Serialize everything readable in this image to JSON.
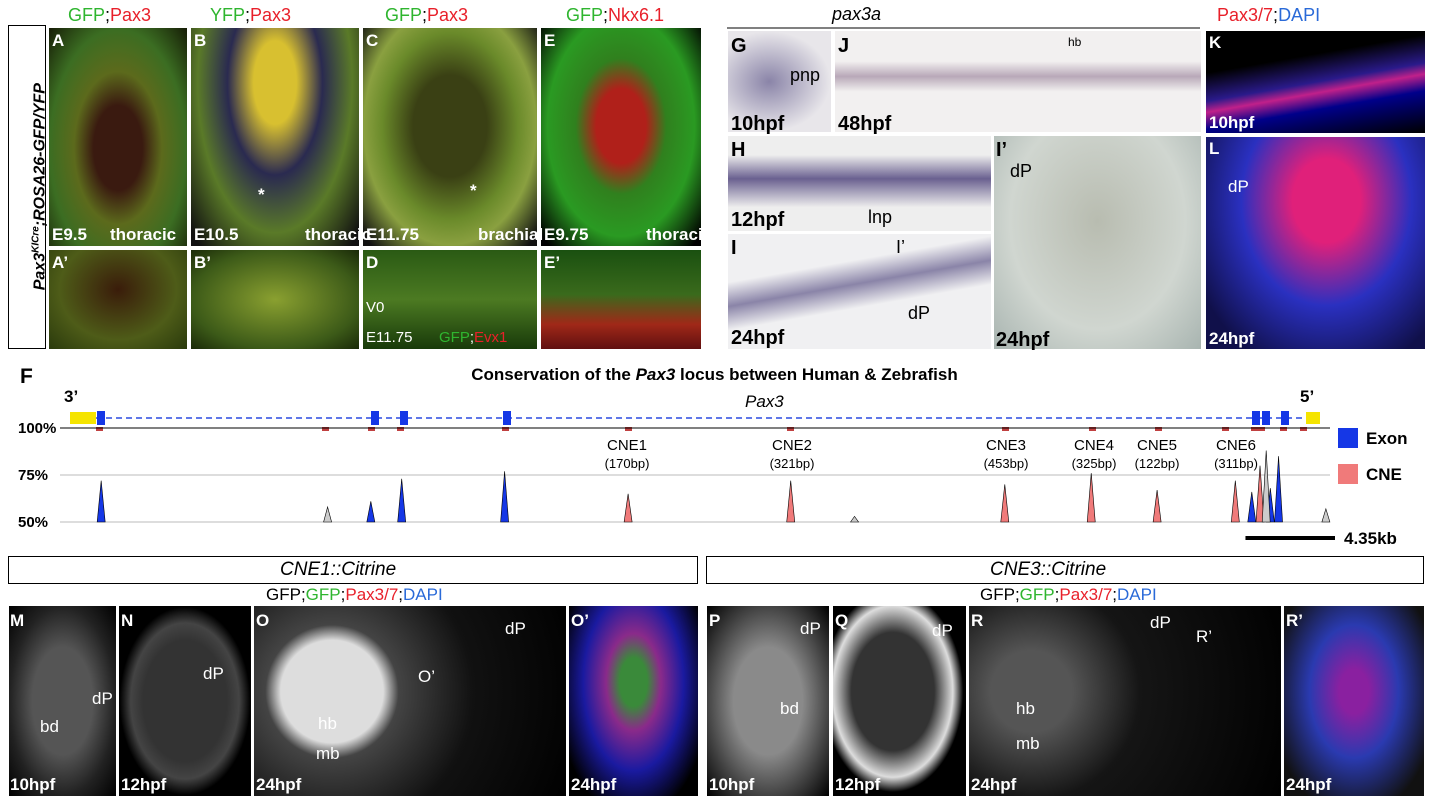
{
  "side_label": {
    "gene": "Pax3",
    "superscript": "KICre",
    "rest": ";ROSA26-GFP/YFP"
  },
  "headers": [
    [
      "GFP",
      ";",
      "Pax3"
    ],
    [
      "YFP",
      ";",
      "Pax3"
    ],
    [
      "GFP",
      ";",
      "Pax3"
    ],
    [
      "GFP",
      ";",
      "Nkx6.1"
    ]
  ],
  "pax3a_header": "pax3a",
  "k_header": [
    "Pax3/7",
    ";",
    "DAPI"
  ],
  "panels": {
    "A": {
      "letter": "A",
      "stage": "E9.5",
      "region": "thoracic"
    },
    "A_prime": {
      "letter": "A’"
    },
    "B": {
      "letter": "B",
      "stage": "E10.5",
      "region": "thoracic",
      "mark": "*"
    },
    "B_prime": {
      "letter": "B’"
    },
    "C": {
      "letter": "C",
      "stage": "E11.75",
      "region": "brachial",
      "mark": "*"
    },
    "D": {
      "letter": "D",
      "domain": "V0",
      "stage": "E11.75",
      "stain": [
        "GFP",
        ";",
        "Evx1"
      ]
    },
    "E": {
      "letter": "E",
      "stage": "E9.75",
      "region": "thoracic"
    },
    "E_prime": {
      "letter": "E’"
    },
    "G": {
      "letter": "G",
      "stage": "10hpf",
      "note": "pnp"
    },
    "J": {
      "letter": "J",
      "stage": "48hpf",
      "note": "hb"
    },
    "K": {
      "letter": "K",
      "stage": "10hpf"
    },
    "H": {
      "letter": "H",
      "stage": "12hpf",
      "note": "lnp"
    },
    "I": {
      "letter": "I",
      "stage": "24hpf",
      "section": "I’",
      "note": "dP"
    },
    "I_prime": {
      "letter": "I’",
      "note": "dP",
      "stage": "24hpf"
    },
    "L": {
      "letter": "L",
      "note": "dP",
      "stage": "24hpf"
    },
    "M": {
      "letter": "M",
      "stage": "10hpf",
      "bd": "bd",
      "dp": "dP"
    },
    "N": {
      "letter": "N",
      "stage": "12hpf",
      "dp": "dP"
    },
    "O": {
      "letter": "O",
      "stage": "24hpf",
      "section": "O’",
      "dp": "dP",
      "hb": "hb",
      "mb": "mb"
    },
    "O_prime": {
      "letter": "O’",
      "stage": "24hpf"
    },
    "P": {
      "letter": "P",
      "stage": "10hpf",
      "dp": "dP",
      "bd": "bd"
    },
    "Q": {
      "letter": "Q",
      "stage": "12hpf",
      "dp": "dP"
    },
    "R": {
      "letter": "R",
      "stage": "24hpf",
      "dp": "dP",
      "section": "R’",
      "hb": "hb",
      "mb": "mb"
    },
    "R_prime": {
      "letter": "R’",
      "stage": "24hpf"
    }
  },
  "conservation": {
    "letter": "F",
    "title": [
      "Conservation of the ",
      "Pax3",
      " locus between Human & Zebrafish"
    ],
    "end3": "3’",
    "end5": "5’",
    "gene": "Pax3",
    "xlim": [
      0,
      60
    ],
    "ylim": [
      50,
      100
    ],
    "yticks": [
      {
        "value": 100,
        "label": "100%"
      },
      {
        "value": 75,
        "label": "75%"
      },
      {
        "value": 50,
        "label": "50%"
      }
    ],
    "series": [
      {
        "name": "Exon",
        "color": "#1537e6",
        "x": [
          0.3,
          13.4,
          14.9,
          19.9,
          56.2,
          57.1,
          57.5
        ],
        "values": [
          72,
          61,
          73,
          77,
          66,
          68,
          85
        ]
      },
      {
        "name": "CNE",
        "color": "#f07a7a",
        "x": [
          25.9,
          33.8,
          44.2,
          48.4,
          51.6,
          55.4,
          56.6
        ],
        "values": [
          65,
          72,
          70,
          76,
          67,
          72,
          80
        ]
      },
      {
        "color": "#cccccc",
        "x": [
          11.3,
          36.9,
          56.9,
          59.8
        ],
        "values": [
          58,
          53,
          88,
          57
        ]
      }
    ],
    "cnes": [
      {
        "name": "CNE1",
        "size": "(170bp)"
      },
      {
        "name": "CNE2",
        "size": "(321bp)"
      },
      {
        "name": "CNE3",
        "size": "(453bp)"
      },
      {
        "name": "CNE4",
        "size": "(325bp)"
      },
      {
        "name": "CNE5",
        "size": "(122bp)"
      },
      {
        "name": "CNE6",
        "size": "(311bp)"
      }
    ],
    "scale_bar": {
      "value": 4.35,
      "label": "4.35kb"
    }
  },
  "bottom": [
    {
      "title": "CNE1::Citrine",
      "stain": [
        "GFP;",
        "GFP",
        ";",
        "Pax3/7",
        ";",
        "DAPI"
      ]
    },
    {
      "title": "CNE3::Citrine",
      "stain": [
        "GFP;",
        "GFP",
        ";",
        "Pax3/7",
        ";",
        "DAPI"
      ]
    }
  ]
}
